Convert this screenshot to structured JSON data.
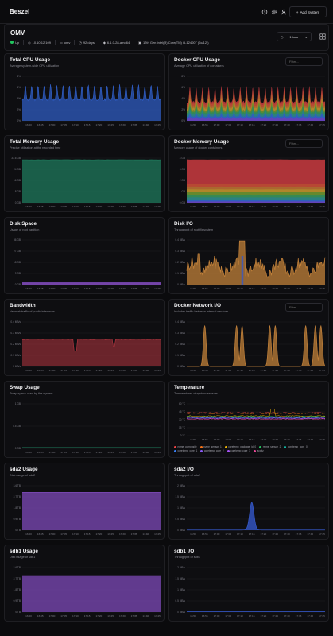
{
  "app": {
    "title": "Beszel",
    "add_system": "Add System"
  },
  "system": {
    "name": "OMV",
    "status": "Up",
    "ip": "10.10.12.109",
    "host": "omv",
    "uptime": "92 days",
    "kernel": "6.1.0-28-amd64",
    "cpu": "12th Gen Intel(R) Core(TM) i5-12400T (6c/12t)",
    "range": "1 hour"
  },
  "filter_placeholder": "Filter...",
  "times": [
    "16:50",
    "16:55",
    "17:00",
    "17:05",
    "17:10",
    "17:15",
    "17:20",
    "17:25",
    "17:30",
    "17:35",
    "17:40",
    "17:45"
  ],
  "panels": [
    {
      "key": "cpu",
      "title": "Total CPU Usage",
      "desc": "Average system-wide CPU utilization",
      "filter": false,
      "yticks": [
        "8%",
        "6%",
        "4%",
        "2%",
        "0%"
      ]
    },
    {
      "key": "dcpu",
      "title": "Docker CPU Usage",
      "desc": "Average CPU utilization of containers",
      "filter": true,
      "yticks": [
        "8%",
        "6%",
        "4%",
        "2%",
        "0%"
      ]
    },
    {
      "key": "mem",
      "title": "Total Memory Usage",
      "desc": "Precise utilization at the recorded time",
      "filter": false,
      "yticks": [
        "33.6 GB",
        "24 GB",
        "16 GB",
        "8 GB",
        "0 GB"
      ]
    },
    {
      "key": "dmem",
      "title": "Docker Memory Usage",
      "desc": "Memory usage of docker containers",
      "filter": true,
      "yticks": [
        "4 GB",
        "3 GB",
        "2 GB",
        "1 GB",
        "0 GB"
      ]
    },
    {
      "key": "disk",
      "title": "Disk Space",
      "desc": "Usage of root partition",
      "filter": false,
      "yticks": [
        "36 GB",
        "27 GB",
        "18 GB",
        "9 GB",
        "0 GB"
      ]
    },
    {
      "key": "diskio",
      "title": "Disk I/O",
      "desc": "Throughput of root filesystem",
      "filter": false,
      "yticks": [
        "0.4 MB/s",
        "0.3 MB/s",
        "0.2 MB/s",
        "0.1 MB/s",
        "0 MB/s"
      ]
    },
    {
      "key": "bw",
      "title": "Bandwidth",
      "desc": "Network traffic of public interfaces",
      "filter": false,
      "yticks": [
        "0.4 MB/s",
        "0.3 MB/s",
        "0.2 MB/s",
        "0.1 MB/s",
        "0 MB/s"
      ]
    },
    {
      "key": "dnet",
      "title": "Docker Network I/O",
      "desc": "Includes traffic between internal services",
      "filter": true,
      "yticks": [
        "0.4 MB/s",
        "0.3 MB/s",
        "0.2 MB/s",
        "0.1 MB/s",
        "0 MB/s"
      ]
    },
    {
      "key": "swap",
      "title": "Swap Usage",
      "desc": "Swap space used by the system",
      "filter": false,
      "yticks": [
        "1 GB",
        "0.5 GB",
        "0 GB"
      ]
    },
    {
      "key": "temp",
      "title": "Temperature",
      "desc": "Temperatures of system sensors",
      "filter": false,
      "yticks": [
        "60 °C",
        "45 °C",
        "30 °C",
        "15 °C",
        "0 °C"
      ]
    },
    {
      "key": "sda2",
      "title": "sda2 Usage",
      "desc": "Disk usage of sda2",
      "filter": false,
      "yticks": [
        "3.6 TB",
        "2.7 TB",
        "1.8 TB",
        "0.9 TB",
        "0 TB"
      ]
    },
    {
      "key": "sda2io",
      "title": "sda2 I/O",
      "desc": "Throughput of sda2",
      "filter": false,
      "yticks": [
        "2 MB/s",
        "1.5 MB/s",
        "1 MB/s",
        "0.5 MB/s",
        "0 MB/s"
      ]
    },
    {
      "key": "sdb1",
      "title": "sdb1 Usage",
      "desc": "Disk usage of sdb1",
      "filter": false,
      "yticks": [
        "3.6 TB",
        "2.7 TB",
        "1.8 TB",
        "0.9 TB",
        "0 TB"
      ]
    },
    {
      "key": "sdb1io",
      "title": "sdb1 I/O",
      "desc": "Throughput of sdb1",
      "filter": false,
      "yticks": [
        "2 MB/s",
        "1.5 MB/s",
        "1 MB/s",
        "0.5 MB/s",
        "0 MB/s"
      ]
    }
  ],
  "temp_legend": [
    {
      "name": "nvme_composite",
      "color": "#ef4444"
    },
    {
      "name": "nvme_sensor_1",
      "color": "#f97316"
    },
    {
      "name": "coretemp_package_id_0",
      "color": "#eab308"
    },
    {
      "name": "nvme_sensor_2",
      "color": "#22c55e"
    },
    {
      "name": "coretemp_core_0",
      "color": "#14b8a6"
    },
    {
      "name": "coretemp_core_1",
      "color": "#3b82f6"
    },
    {
      "name": "coretemp_core_2",
      "color": "#8b5cf6"
    },
    {
      "name": "coretemp_core_3",
      "color": "#a855f7"
    },
    {
      "name": "acpitz",
      "color": "#ec4899"
    }
  ],
  "colors": {
    "cpu": "#2f5cc2",
    "mem": "#1f7a5c",
    "disk": "#7e4ab8",
    "diskio": "#c2813a",
    "bw": "#a8333d",
    "dnet": "#c2813a",
    "swap": "#1f7a5c",
    "sda2": "#7e4ab8",
    "sda2io": "#3558c9",
    "sdb1": "#7e4ab8",
    "sdb1io": "#3558c9",
    "stack": [
      "#c0393e",
      "#b84a33",
      "#a86a30",
      "#b08a2a",
      "#5e8a2e",
      "#2f8a5a",
      "#2a7f86",
      "#2f5cc2",
      "#6a3fb8"
    ]
  }
}
